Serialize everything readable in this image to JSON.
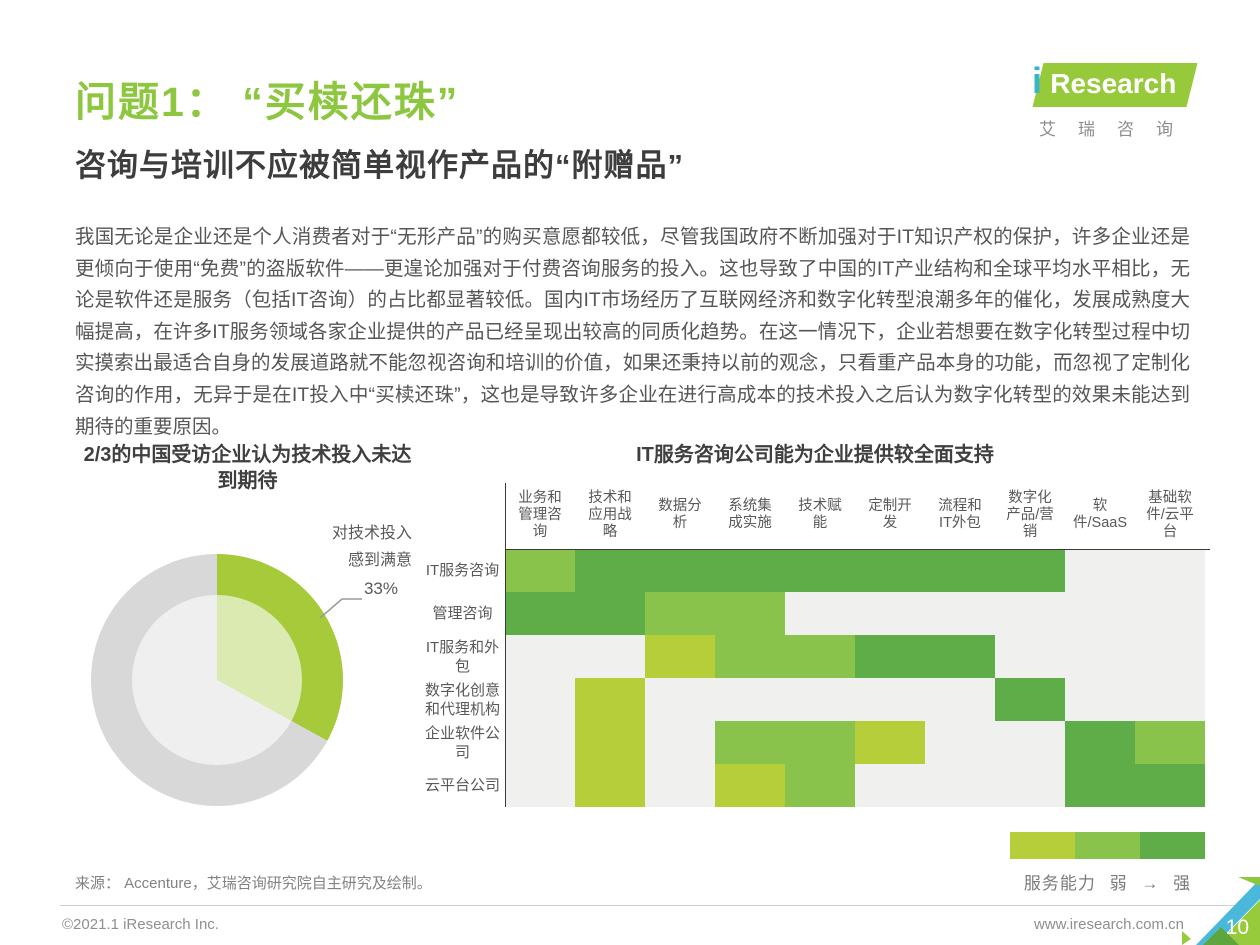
{
  "header": {
    "title": "问题1： “买椟还珠”",
    "subtitle": "咨询与培训不应被简单视作产品的“附赠品”"
  },
  "logo": {
    "i": "i",
    "rest": "Research",
    "cn": "艾瑞咨询"
  },
  "body": {
    "paragraph": "我国无论是企业还是个人消费者对于“无形产品”的购买意愿都较低，尽管我国政府不断加强对于IT知识产权的保护，许多企业还是更倾向于使用“免费”的盗版软件——更遑论加强对于付费咨询服务的投入。这也导致了中国的IT产业结构和全球平均水平相比，无论是软件还是服务（包括IT咨询）的占比都显著较低。国内IT市场经历了互联网经济和数字化转型浪潮多年的催化，发展成熟度大幅提高，在许多IT服务领域各家企业提供的产品已经呈现出较高的同质化趋势。在这一情况下，企业若想要在数字化转型过程中切实摸索出最适合自身的发展道路就不能忽视咨询和培训的价值，如果还秉持以前的观念，只看重产品本身的功能，而忽视了定制化咨询的作用，无异于是在IT投入中“买椟还珠”，这也是导致许多企业在进行高成本的技术投入之后认为数字化转型的效果未能达到期待的重要原因。"
  },
  "chart_data": [
    {
      "type": "pie",
      "title": "2/3的中国受访企业认为技术投入未达到期待",
      "slices": [
        {
          "label": "对技术投入感到满意",
          "value": 33,
          "color": "#a6ca3a"
        },
        {
          "value": 67,
          "color": "#d8d8d8"
        }
      ],
      "donut": true,
      "start_angle": "12点钟方向",
      "inner_overlay_opacity": 0.6
    },
    {
      "type": "heatmap",
      "title": "IT服务咨询公司能为企业提供较全面支持",
      "columns": [
        "业务和管理咨询",
        "技术和应用战略",
        "数据分析",
        "系统集成实施",
        "技术赋能",
        "定制开发",
        "流程和IT外包",
        "数字化产品/营销",
        "软件/SaaS",
        "基础软件/云平台"
      ],
      "rows": [
        "IT服务咨询",
        "管理咨询",
        "IT服务和外包",
        "数字化创意和代理机构",
        "企业软件公司",
        "云平台公司"
      ],
      "values": [
        [
          2,
          3,
          3,
          3,
          3,
          3,
          3,
          3,
          0,
          0
        ],
        [
          3,
          3,
          2,
          2,
          0,
          0,
          0,
          0,
          0,
          0
        ],
        [
          0,
          0,
          1,
          2,
          2,
          3,
          3,
          0,
          0,
          0
        ],
        [
          0,
          1,
          0,
          0,
          0,
          0,
          0,
          3,
          0,
          0
        ],
        [
          0,
          1,
          0,
          2,
          2,
          1,
          0,
          0,
          3,
          2
        ],
        [
          0,
          1,
          0,
          1,
          2,
          0,
          0,
          0,
          3,
          3
        ]
      ],
      "level_colors": [
        "#f0f0ee",
        "#b5ce39",
        "#89c34c",
        "#5fad48"
      ],
      "legend": {
        "label": "服务能力",
        "weak": "弱",
        "arrow": "→",
        "strong": "强",
        "colors": [
          "#b5ce39",
          "#89c34c",
          "#5fad48"
        ]
      }
    }
  ],
  "source": {
    "text": "来源： Accenture，艾瑞咨询研究院自主研究及绘制。"
  },
  "footer": {
    "copyright": "©2021.1 iResearch Inc.",
    "website": "www.iresearch.com.cn",
    "page": "10"
  },
  "colors": {
    "accent_green": "#8dc63f",
    "logo_green": "#97ca3a",
    "logo_teal": "#39b5c9",
    "corner_blue": "#49b8da"
  }
}
